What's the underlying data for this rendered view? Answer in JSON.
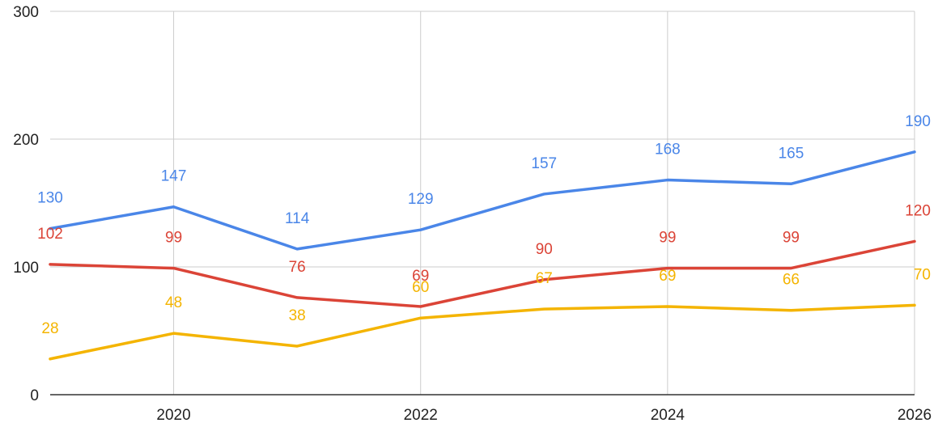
{
  "chart_data": {
    "type": "line",
    "title": "",
    "xlabel": "",
    "ylabel": "",
    "x": [
      2019,
      2020,
      2021,
      2022,
      2023,
      2024,
      2025,
      2026
    ],
    "xlim": [
      2019,
      2026
    ],
    "ylim": [
      0,
      300
    ],
    "x_ticks": [
      2020,
      2022,
      2024,
      2026
    ],
    "x_grid_ticks": [
      2020,
      2022,
      2024,
      2026
    ],
    "y_ticks": [
      0,
      100,
      200,
      300
    ],
    "x_tick_labels": [
      "2020",
      "2022",
      "2024",
      "2026"
    ],
    "y_tick_labels": [
      "0",
      "100",
      "200",
      "300"
    ],
    "grid": true,
    "legend": "none",
    "series": [
      {
        "color": "#4a86e8",
        "values": [
          130,
          147,
          114,
          129,
          157,
          168,
          165,
          190
        ]
      },
      {
        "color": "#db4437",
        "values": [
          102,
          99,
          76,
          69,
          90,
          99,
          99,
          120
        ]
      },
      {
        "color": "#f4b400",
        "values": [
          28,
          48,
          38,
          60,
          67,
          69,
          66,
          70
        ]
      }
    ]
  }
}
